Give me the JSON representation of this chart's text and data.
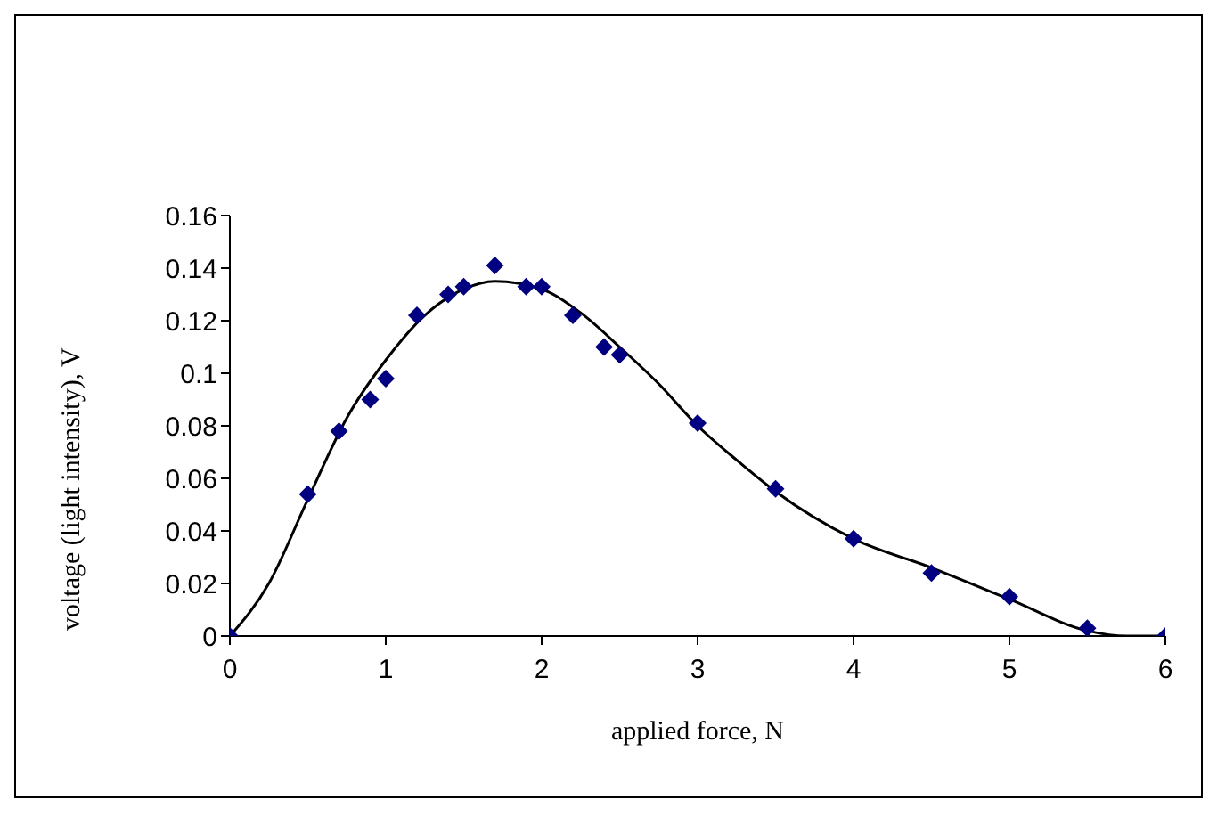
{
  "chart_data": {
    "type": "scatter",
    "xlabel": "applied force, N",
    "ylabel": "voltage (light intensity), V",
    "xlim": [
      0,
      6
    ],
    "xticks": [
      0,
      1,
      2,
      3,
      4,
      5,
      6
    ],
    "ylim": [
      0,
      0.16
    ],
    "yticks": [
      0,
      0.02,
      0.04,
      0.06,
      0.08,
      0.1,
      0.12,
      0.14,
      0.16
    ],
    "grid": false,
    "series": [
      {
        "color": "#000080",
        "marker": "diamond",
        "x": [
          0,
          0.5,
          0.7,
          0.9,
          1,
          1.2,
          1.4,
          1.5,
          1.7,
          1.9,
          2,
          2.2,
          2.4,
          2.5,
          3,
          3.5,
          4,
          4.5,
          5,
          5.5,
          6
        ],
        "values": [
          0,
          0.054,
          0.078,
          0.09,
          0.098,
          0.122,
          0.13,
          0.133,
          0.141,
          0.133,
          0.133,
          0.122,
          0.11,
          0.107,
          0.081,
          0.056,
          0.037,
          0.024,
          0.015,
          0.003,
          0
        ]
      },
      {
        "type": "line",
        "color": "#000000",
        "marker": "none",
        "line_style": "solid",
        "x": [
          0,
          0.25,
          0.5,
          0.75,
          1,
          1.25,
          1.5,
          1.7,
          2,
          2.25,
          2.5,
          2.75,
          3,
          3.25,
          3.5,
          4,
          4.5,
          5,
          5.5,
          5.75,
          6
        ],
        "values": [
          0,
          0.02,
          0.052,
          0.083,
          0.105,
          0.122,
          0.132,
          0.135,
          0.132,
          0.123,
          0.11,
          0.096,
          0.08,
          0.067,
          0.055,
          0.037,
          0.026,
          0.014,
          0.002,
          0,
          0
        ]
      }
    ]
  }
}
